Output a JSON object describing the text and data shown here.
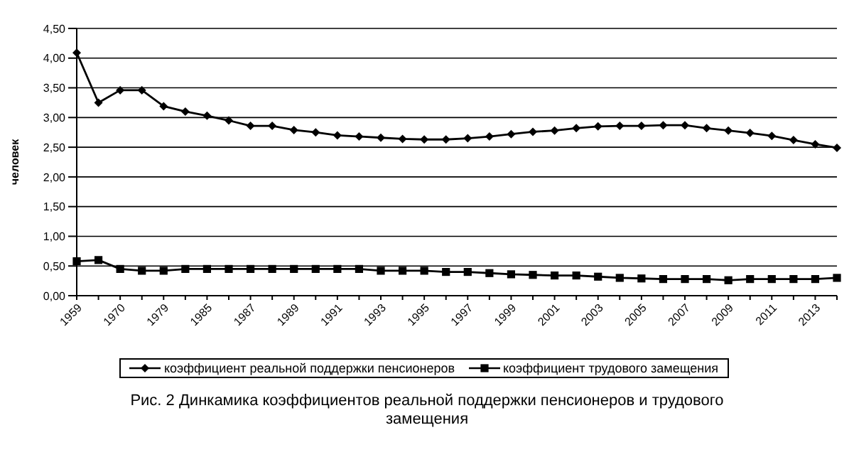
{
  "chart_data": {
    "type": "line",
    "ylabel": "человек",
    "categories": [
      "1959",
      null,
      "1970",
      null,
      "1979",
      null,
      "1985",
      null,
      "1987",
      null,
      "1989",
      null,
      "1991",
      null,
      "1993",
      null,
      "1995",
      null,
      "1997",
      null,
      "1999",
      null,
      "2001",
      null,
      "2003",
      null,
      "2005",
      null,
      "2007",
      null,
      "2009",
      null,
      "2011",
      null,
      "2013",
      null
    ],
    "series": [
      {
        "name": "коэффициент реальной поддержки пенсионеров",
        "color": "#000000",
        "marker": "diamond",
        "values": [
          4.09,
          3.25,
          3.46,
          3.46,
          3.19,
          3.1,
          3.03,
          2.95,
          2.86,
          2.86,
          2.79,
          2.75,
          2.7,
          2.68,
          2.66,
          2.64,
          2.63,
          2.63,
          2.65,
          2.68,
          2.72,
          2.76,
          2.78,
          2.82,
          2.85,
          2.86,
          2.86,
          2.87,
          2.87,
          2.82,
          2.78,
          2.74,
          2.69,
          2.62,
          2.55,
          2.49
        ]
      },
      {
        "name": "коэффициент трудового замещения",
        "color": "#000000",
        "marker": "square",
        "values": [
          0.58,
          0.6,
          0.45,
          0.42,
          0.42,
          0.45,
          0.45,
          0.45,
          0.45,
          0.45,
          0.45,
          0.45,
          0.45,
          0.45,
          0.42,
          0.42,
          0.42,
          0.4,
          0.4,
          0.38,
          0.36,
          0.35,
          0.34,
          0.34,
          0.32,
          0.3,
          0.29,
          0.28,
          0.28,
          0.28,
          0.26,
          0.28,
          0.28,
          0.28,
          0.28,
          0.3
        ]
      }
    ],
    "ylim": [
      0,
      4.5
    ],
    "yticks": [
      {
        "value": 0,
        "label": "0,00"
      },
      {
        "value": 0.5,
        "label": "0,50"
      },
      {
        "value": 1,
        "label": "1,00"
      },
      {
        "value": 1.5,
        "label": "1,50"
      },
      {
        "value": 2,
        "label": "2,00"
      },
      {
        "value": 2.5,
        "label": "2,50"
      },
      {
        "value": 3,
        "label": "3,00"
      },
      {
        "value": 3.5,
        "label": "3,50"
      },
      {
        "value": 4,
        "label": "4,00"
      },
      {
        "value": 4.5,
        "label": "4,50"
      }
    ],
    "grid": "y",
    "legend": "bottom",
    "line_style": "solid",
    "annotations": [
      "Рис. 2  Динкамика коэффициентов реальной поддержки пенсионеров и трудового замещения"
    ]
  }
}
